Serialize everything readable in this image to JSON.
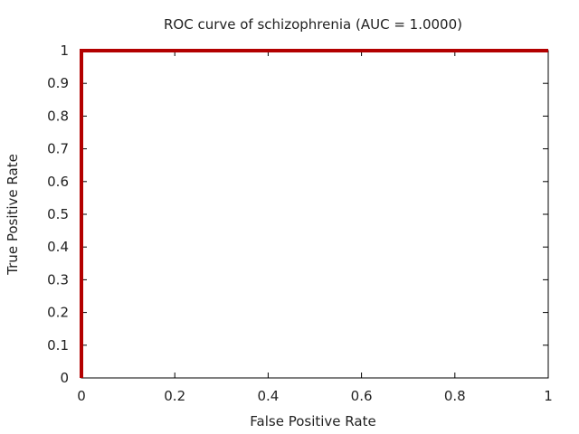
{
  "chart_data": {
    "type": "line",
    "title": "ROC curve of schizophrenia (AUC = 1.0000)",
    "xlabel": "False Positive Rate",
    "ylabel": "True Positive Rate",
    "xlim": [
      0,
      1
    ],
    "ylim": [
      0,
      1
    ],
    "xticks": [
      0,
      0.2,
      0.4,
      0.6,
      0.8,
      1
    ],
    "xtick_labels": [
      "0",
      "0.2",
      "0.4",
      "0.6",
      "0.8",
      "1"
    ],
    "yticks": [
      0,
      0.1,
      0.2,
      0.3,
      0.4,
      0.5,
      0.6,
      0.7,
      0.8,
      0.9,
      1
    ],
    "ytick_labels": [
      "0",
      "0.1",
      "0.2",
      "0.3",
      "0.4",
      "0.5",
      "0.6",
      "0.7",
      "0.8",
      "0.9",
      "1"
    ],
    "grid": false,
    "legend": "none",
    "series": [
      {
        "x": [
          0,
          0,
          1
        ],
        "y": [
          0,
          1,
          1
        ],
        "color": "#b30000"
      }
    ]
  }
}
